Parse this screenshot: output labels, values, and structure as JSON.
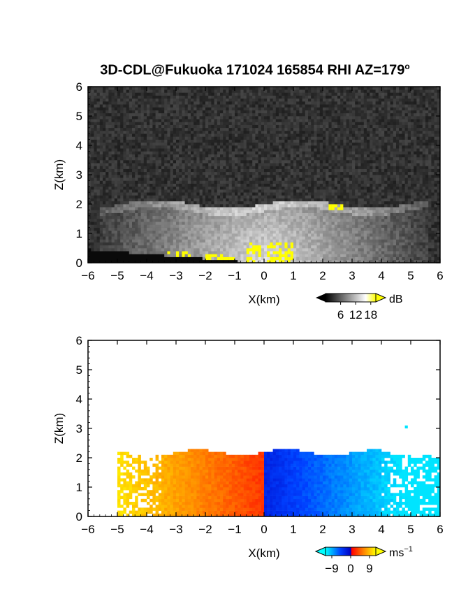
{
  "figure": {
    "title_main": "3D-CDL@Fukuoka 171024 165854 RHI AZ=179",
    "title_sup": "o"
  },
  "chart_data": [
    {
      "type": "heatmap",
      "panel": "top",
      "quantity": "backscatter intensity",
      "xlabel": "X(km)",
      "ylabel": "Z(km)",
      "xlim": [
        -6,
        6
      ],
      "ylim": [
        0,
        6
      ],
      "xticks": [
        -6,
        -5,
        -4,
        -3,
        -2,
        -1,
        0,
        1,
        2,
        3,
        4,
        5,
        6
      ],
      "yticks": [
        0,
        1,
        2,
        3,
        4,
        5,
        6
      ],
      "colorbar": {
        "unit": "dB",
        "ticks": [
          6,
          12,
          18
        ],
        "range": [
          0,
          20
        ],
        "colors": [
          "#000000",
          "#ffffff",
          "#ffff00"
        ]
      },
      "features": {
        "noise_floor_top_km": 6,
        "echo_layer_top_km": 2.0,
        "saturated_near_origin_km": [
          -0.6,
          1.0
        ],
        "saturated_elevated_km": [
          2.2,
          2.8
        ]
      }
    },
    {
      "type": "heatmap",
      "panel": "bottom",
      "quantity": "radial velocity",
      "xlabel": "X(km)",
      "ylabel": "Z(km)",
      "xlim": [
        -6,
        6
      ],
      "ylim": [
        0,
        6
      ],
      "xticks": [
        -6,
        -5,
        -4,
        -3,
        -2,
        -1,
        0,
        1,
        2,
        3,
        4,
        5,
        6
      ],
      "yticks": [
        0,
        1,
        2,
        3,
        4,
        5,
        6
      ],
      "colorbar": {
        "unit": "ms",
        "unit_sup": "−1",
        "ticks": [
          -9,
          0,
          9
        ],
        "tick_labels": [
          "−9",
          "0",
          "9"
        ],
        "range": [
          -12,
          12
        ],
        "colors": [
          "#00ffff",
          "#0000ff",
          "#ff0000",
          "#ffff00"
        ]
      },
      "features": {
        "echo_top_km": 2.2,
        "left_extent_km": -5.0,
        "right_extent_km": 6.0,
        "velocity_left_range": [
          3,
          9
        ],
        "velocity_right_range": [
          -9,
          -3
        ],
        "isolated_point": [
          4.8,
          3.0
        ]
      }
    }
  ]
}
